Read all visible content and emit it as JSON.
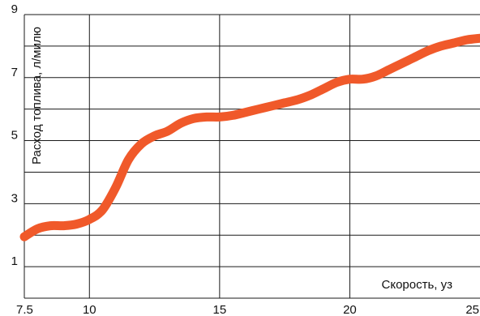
{
  "chart_data": {
    "type": "line",
    "title": "",
    "xlabel": "Скорость, уз",
    "ylabel": "Расход топлива, л/милю",
    "xlim": [
      7.5,
      25
    ],
    "ylim": [
      0,
      9
    ],
    "x_ticks": [
      "7.5",
      "10",
      "15",
      "20",
      "25"
    ],
    "y_ticks": [
      "1",
      "3",
      "5",
      "7",
      "9"
    ],
    "grid": true,
    "line_color": "#F0592A",
    "series": [
      {
        "name": "",
        "x": [
          7.5,
          8.0,
          8.5,
          9.0,
          9.5,
          10.0,
          10.5,
          11.0,
          11.5,
          12.0,
          12.5,
          13.0,
          13.5,
          14.0,
          14.5,
          15.0,
          15.5,
          16.0,
          16.5,
          17.0,
          17.5,
          18.0,
          18.5,
          19.0,
          19.5,
          20.0,
          20.5,
          21.0,
          21.5,
          22.0,
          22.5,
          23.0,
          23.5,
          24.0,
          24.5,
          25.0
        ],
        "y": [
          1.95,
          2.2,
          2.3,
          2.3,
          2.35,
          2.5,
          2.8,
          3.5,
          4.4,
          4.9,
          5.15,
          5.3,
          5.55,
          5.7,
          5.75,
          5.75,
          5.8,
          5.9,
          6.0,
          6.1,
          6.2,
          6.3,
          6.45,
          6.65,
          6.85,
          6.95,
          6.95,
          7.05,
          7.25,
          7.45,
          7.65,
          7.85,
          8.0,
          8.1,
          8.2,
          8.25
        ]
      }
    ]
  }
}
